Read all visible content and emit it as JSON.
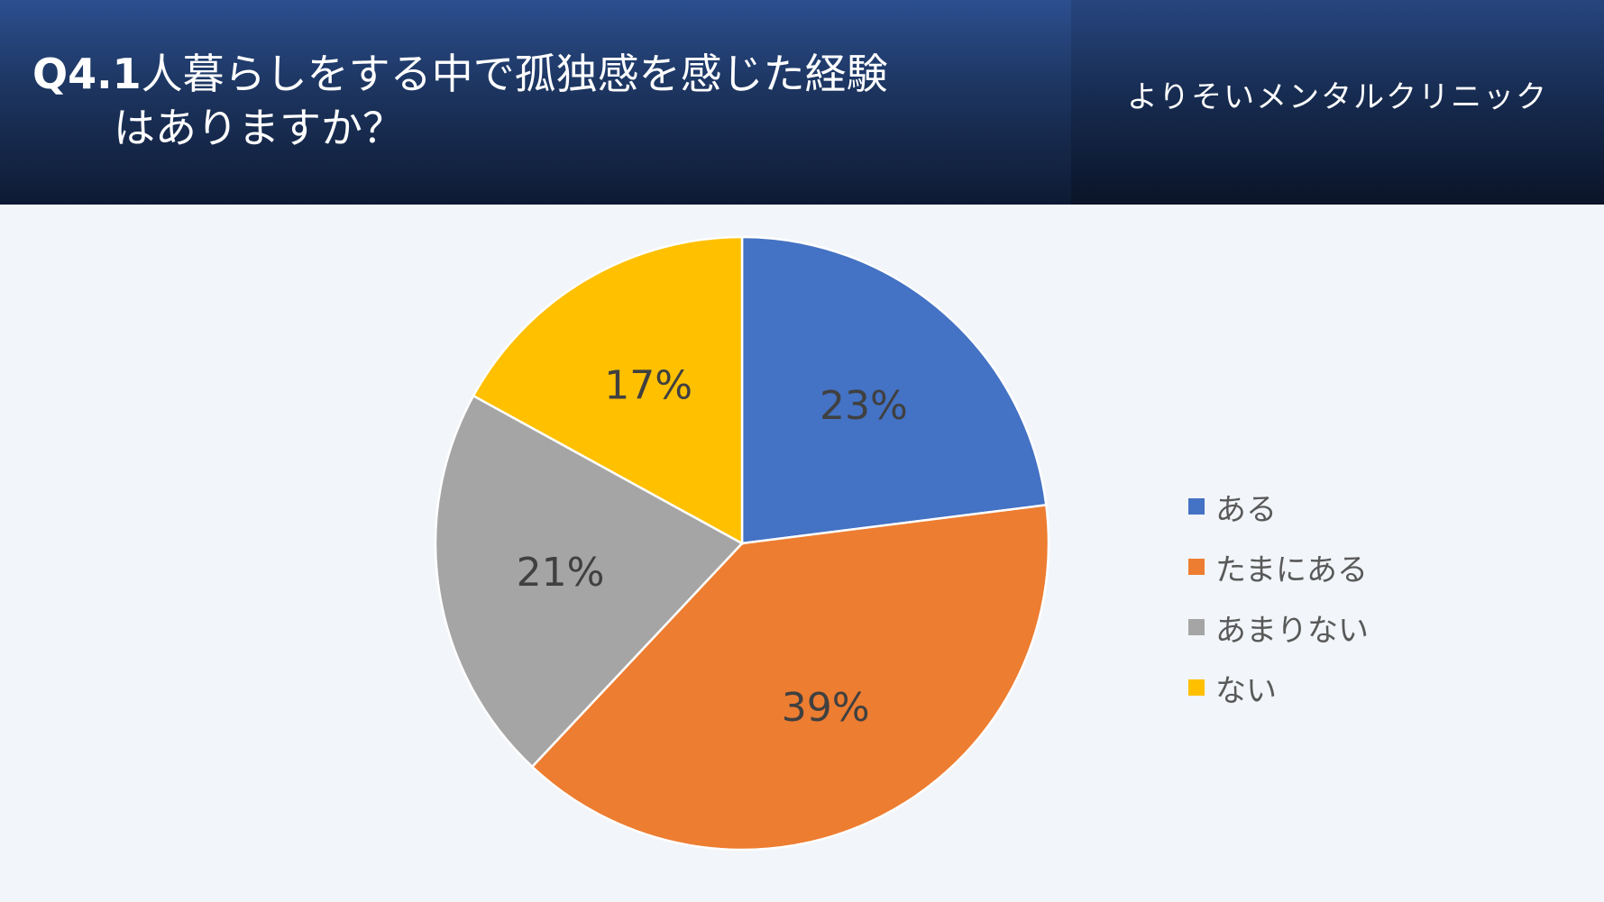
{
  "header": {
    "title_prefix": "Q4.1",
    "title_line1": "人暮らしをする中で孤独感を感じた経験",
    "title_line2": "はありますか？",
    "clinic_name": "よりそいメンタルクリニック"
  },
  "chart_data": {
    "type": "pie",
    "title": "Q4.1人暮らしをする中で孤独感を感じた経験はありますか？",
    "slices": [
      {
        "label": "ある",
        "value": 23,
        "display": "23%",
        "color": "#4472c4"
      },
      {
        "label": "たまにある",
        "value": 39,
        "display": "39%",
        "color": "#ed7d31"
      },
      {
        "label": "あまりない",
        "value": 21,
        "display": "21%",
        "color": "#a5a5a5"
      },
      {
        "label": "ない",
        "value": 17,
        "display": "17%",
        "color": "#ffc000"
      }
    ],
    "legend_position": "right"
  }
}
